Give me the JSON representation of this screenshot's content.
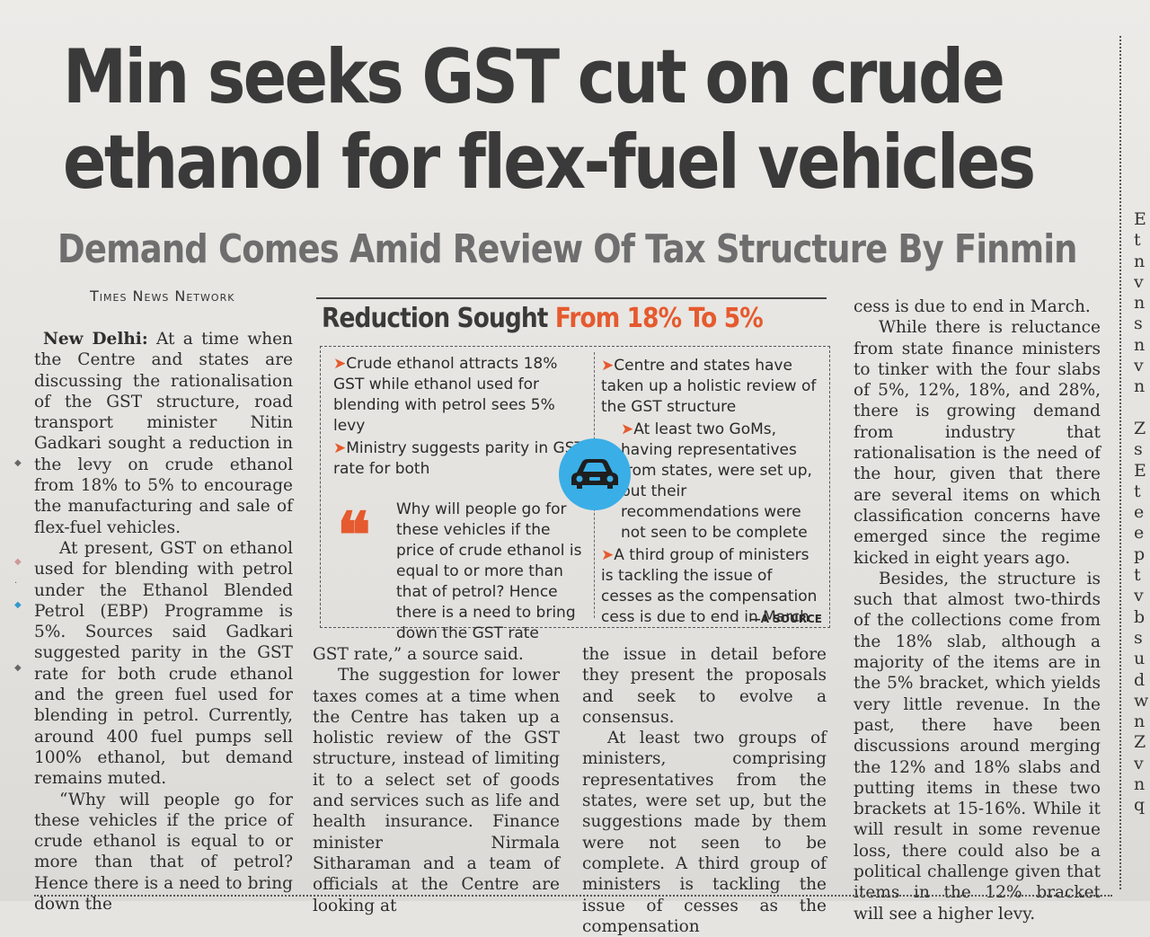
{
  "headline": {
    "line1": "Min seeks GST cut on crude",
    "line2": "ethanol for flex-fuel vehicles"
  },
  "deck": "Demand Comes Amid Review Of Tax Structure By Finmin",
  "byline": "Times News Network",
  "box": {
    "title_dark": "Reduction Sought",
    "title_red": "From 18% To 5%",
    "left_points": [
      "Crude ethanol attracts 18% GST while ethanol used for blending with petrol sees 5% levy",
      "Ministry suggests parity in GST rate for both"
    ],
    "quote": "Why will people go for these vehicles if the price of crude ethanol is equal to or more than that of petrol? Hence there is a need to bring down the GST rate",
    "quote_source": "—A SOURCE",
    "right_points": [
      "Centre and states have taken up a holistic review of the GST structure",
      "At least two GoMs, having representatives from states, were set up, but their recommendations were not seen to be complete",
      "A third group of ministers is tackling the issue of cesses as the compensation cess is due to end in March"
    ],
    "icon": "car-icon",
    "icon_color": "#3aaee6",
    "accent_color": "#e55a2e"
  },
  "col1": {
    "dateline": "New Delhi:",
    "p1": "At a time when the Centre and states are discussing the rationalisation of the GST structure, road transport minister Nitin Gadkari sought a reduction in the levy on crude ethanol from 18% to 5% to encourage the manufacturing and sale of flex-fuel vehicles.",
    "p2": "At present, GST on ethanol used for blending with petrol under the Ethanol Blended Petrol (EBP) Programme is 5%. Sources said Gadkari suggested parity in the GST rate for both crude ethanol and the green fuel used for blending in petrol. Currently, around 400 fuel pumps sell 100% ethanol, but demand remains muted.",
    "p3": "“Why will people go for these vehicles if the price of crude ethanol is equal to or more than that of petrol? Hence there is a need to bring down the"
  },
  "col2": {
    "p1": "GST rate,” a source said.",
    "p2": "The suggestion for lower taxes comes at a time when the Centre has taken up a holistic review of the GST structure, instead of limiting it to a select set of goods and services such as life and health insurance. Finance minister Nirmala Sitharaman and a team of officials at the Centre are looking at"
  },
  "col3": {
    "p1": "the issue in detail before they present the proposals and seek to evolve a consensus.",
    "p2": "At least two groups of ministers, comprising representatives from the states, were set up, but the suggestions made by them were not seen to be complete. A third group of ministers is tackling the issue of cesses as the compensation"
  },
  "col4": {
    "p1": "cess is due to end in March.",
    "p2": "While there is reluctance from state finance ministers to tinker with the four slabs of 5%, 12%, 18%, and 28%, there is growing demand from industry that rationalisation is the need of the hour, given that there are several items on which classification concerns have emerged since the regime kicked in eight years ago.",
    "p3": "Besides, the structure is such that almost two-thirds of the collections come from the 18% slab, although a majority of the items are in the 5% bracket, which yields very little revenue. In the past, there have been discussions around merging the 12% and 18% slabs and putting items in these two brackets at 15-16%. While it will result in some revenue loss, there could also be a political challenge given that items in the 12% bracket will see a higher levy."
  },
  "edge_letters": [
    "",
    "",
    "",
    "",
    "",
    "",
    "",
    "",
    "",
    "",
    "E",
    "t",
    "n",
    "v",
    "n",
    "s",
    "n",
    "v",
    "n",
    "",
    "Z",
    "s",
    "E",
    "t",
    "e",
    "e",
    "p",
    "t",
    "v",
    "b",
    "s",
    "u",
    "d",
    "w",
    "n",
    "Z",
    "v",
    "n",
    "q"
  ]
}
